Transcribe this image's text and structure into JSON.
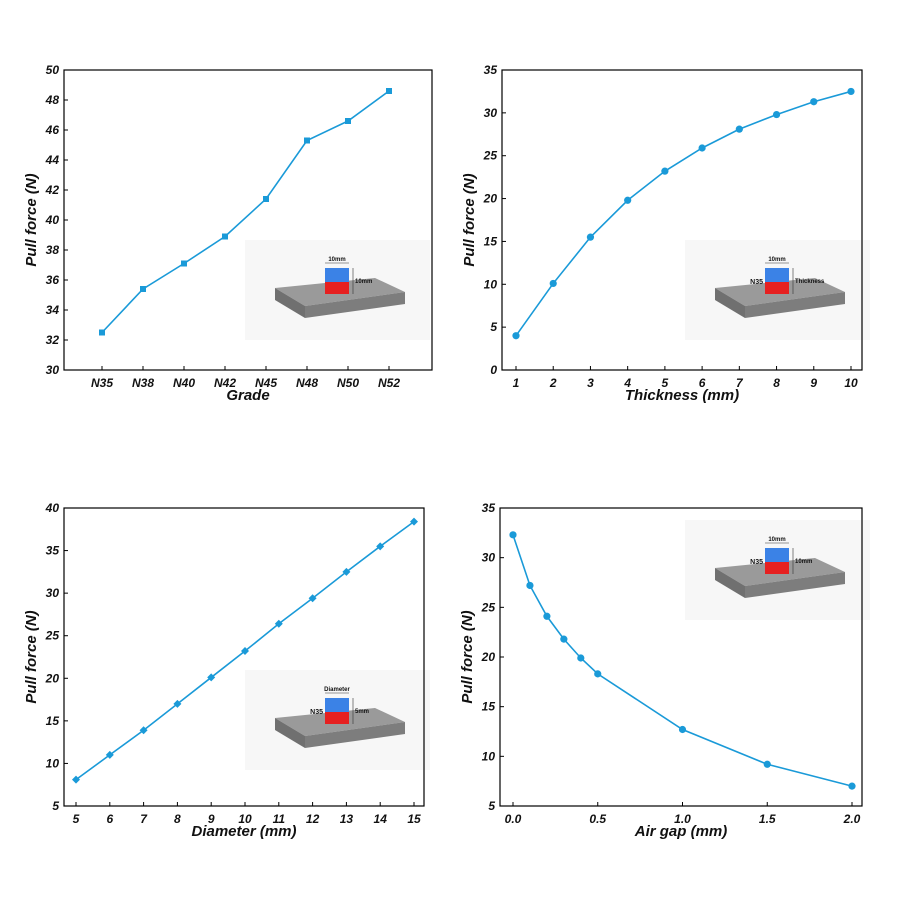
{
  "colors": {
    "series": "#1a9ad8",
    "axis": "#000000",
    "plate": "#8a8a8a",
    "magnet_top": "#3b82e6",
    "magnet_bottom": "#e62020"
  },
  "chart_data": [
    {
      "type": "line",
      "marker": "square",
      "categories": [
        "N35",
        "N38",
        "N40",
        "N42",
        "N45",
        "N48",
        "N50",
        "N52"
      ],
      "values": [
        32.5,
        35.4,
        37.1,
        38.9,
        41.4,
        45.3,
        46.6,
        48.6
      ],
      "xlabel": "Grade",
      "ylabel": "Pull force (N)",
      "ylim": [
        30,
        50
      ],
      "yticks": [
        30,
        32,
        34,
        36,
        38,
        40,
        42,
        44,
        46,
        48,
        50
      ],
      "inset": {
        "labels": [
          "10mm",
          "10mm"
        ]
      }
    },
    {
      "type": "line",
      "marker": "circle",
      "x": [
        1,
        2,
        3,
        4,
        5,
        6,
        7,
        8,
        9,
        10
      ],
      "values": [
        4.0,
        10.1,
        15.5,
        19.8,
        23.2,
        25.9,
        28.1,
        29.8,
        31.3,
        32.5
      ],
      "xlabel": "Thickness (mm)",
      "ylabel": "Pull force (N)",
      "xlim": [
        1,
        10
      ],
      "xticks": [
        1,
        2,
        3,
        4,
        5,
        6,
        7,
        8,
        9,
        10
      ],
      "ylim": [
        0,
        35
      ],
      "yticks": [
        0,
        5,
        10,
        15,
        20,
        25,
        30,
        35
      ],
      "inset": {
        "labels": [
          "10mm",
          "N35",
          "Thickness"
        ]
      }
    },
    {
      "type": "line",
      "marker": "diamond",
      "x": [
        5,
        6,
        7,
        8,
        9,
        10,
        11,
        12,
        13,
        14,
        15
      ],
      "values": [
        8.1,
        11.0,
        13.9,
        17.0,
        20.1,
        23.2,
        26.4,
        29.4,
        32.5,
        35.5,
        38.4
      ],
      "xlabel": "Diameter (mm)",
      "ylabel": "Pull force (N)",
      "xlim": [
        5,
        15
      ],
      "xticks": [
        5,
        6,
        7,
        8,
        9,
        10,
        11,
        12,
        13,
        14,
        15
      ],
      "ylim": [
        5,
        40
      ],
      "yticks": [
        5,
        10,
        15,
        20,
        25,
        30,
        35,
        40
      ],
      "inset": {
        "labels": [
          "Diameter",
          "N35",
          "5mm"
        ]
      }
    },
    {
      "type": "line",
      "marker": "circle",
      "x": [
        0,
        0.1,
        0.2,
        0.3,
        0.4,
        0.5,
        1.0,
        1.5,
        2.0
      ],
      "values": [
        32.3,
        27.2,
        24.1,
        21.8,
        19.9,
        18.3,
        12.7,
        9.2,
        7.0
      ],
      "xlabel": "Air gap (mm)",
      "ylabel": "Pull force (N)",
      "xlim": [
        0,
        2
      ],
      "xticks": [
        "0.0",
        "0.5",
        "1.0",
        "1.5",
        "2.0"
      ],
      "ylim": [
        5,
        35
      ],
      "yticks": [
        5,
        10,
        15,
        20,
        25,
        30,
        35
      ],
      "inset": {
        "labels": [
          "10mm",
          "N35",
          "10mm"
        ]
      }
    }
  ]
}
